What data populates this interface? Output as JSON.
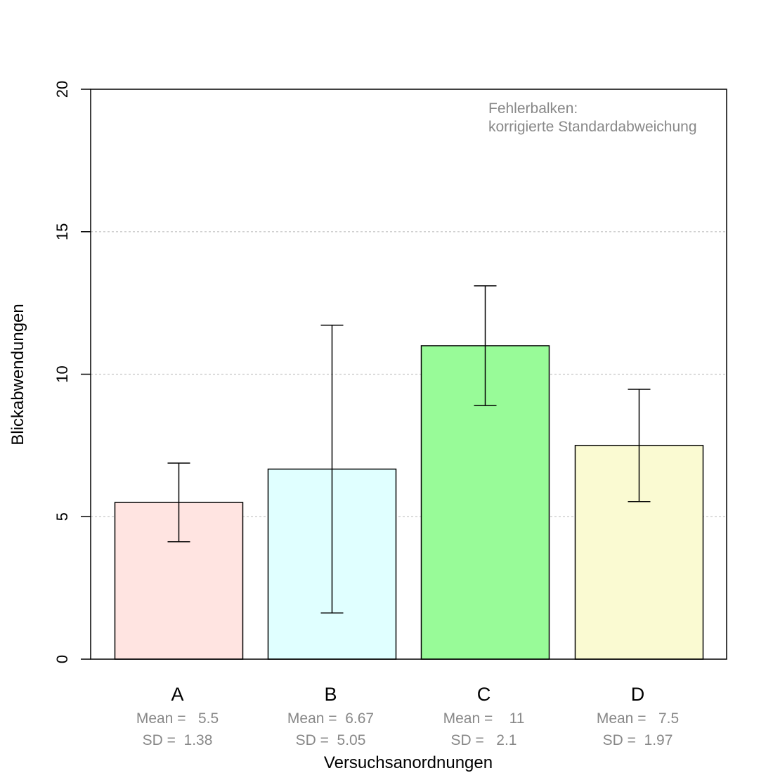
{
  "chart_data": {
    "type": "bar",
    "categories": [
      "A",
      "B",
      "C",
      "D"
    ],
    "values": [
      5.5,
      6.67,
      11,
      7.5
    ],
    "error_bars": {
      "lower": [
        4.12,
        1.62,
        8.9,
        5.53
      ],
      "upper": [
        6.88,
        11.72,
        13.1,
        9.47
      ]
    },
    "stats": [
      {
        "mean_label": "Mean =   5.5",
        "sd_label": "SD =  1.38"
      },
      {
        "mean_label": "Mean =  6.67",
        "sd_label": "SD =  5.05"
      },
      {
        "mean_label": "Mean =    11",
        "sd_label": "SD =   2.1"
      },
      {
        "mean_label": "Mean =   7.5",
        "sd_label": "SD =  1.97"
      }
    ],
    "colors": [
      "#FFE4E1",
      "#E0FFFF",
      "#98FB98",
      "#FAFAD2"
    ],
    "xlabel": "Versuchsanordnungen",
    "ylabel": "Blickabwendungen",
    "ylim": [
      0,
      20
    ],
    "yticks": [
      "0",
      "5",
      "10",
      "15",
      "20"
    ],
    "grid": true,
    "annotation": {
      "line1": "Fehlerbalken:",
      "line2": "korrigierte Standardabweichung"
    }
  }
}
